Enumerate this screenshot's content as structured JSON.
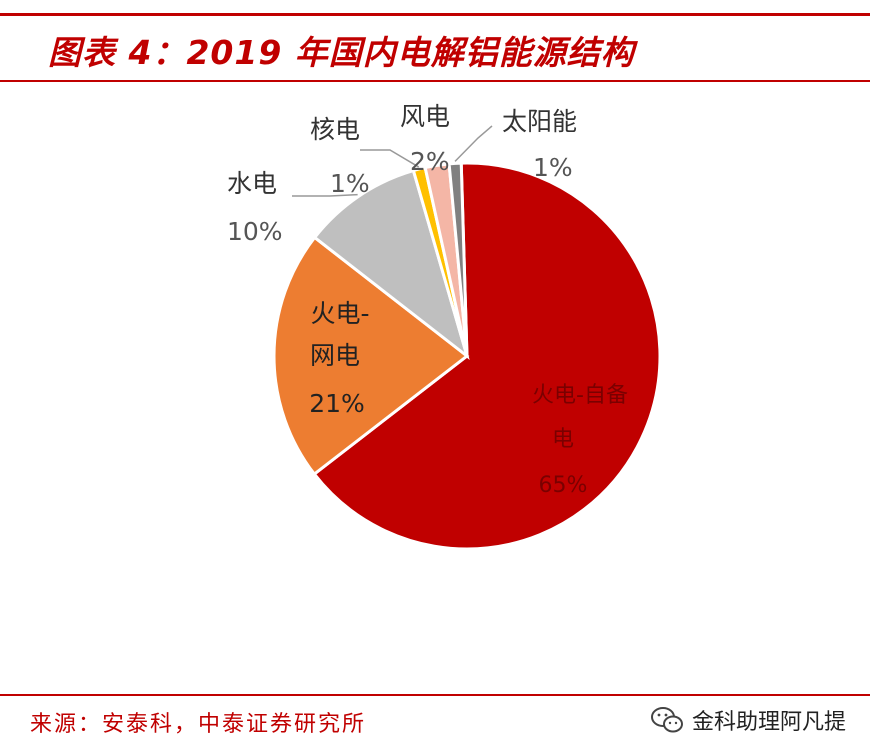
{
  "header": {
    "title": "图表 4：2019 年国内电解铝能源结构"
  },
  "footer": {
    "source": "来源：安泰科，中泰证券研究所",
    "watermark": "金科助理阿凡提",
    "watermark_icon": "wechat-icon"
  },
  "chart_data": {
    "type": "pie",
    "slices": [
      {
        "name": "火电-自备电",
        "name_line1": "火电-自备",
        "name_line2": "电",
        "value": 65,
        "label": "65%",
        "color": "#c00000"
      },
      {
        "name": "火电-网电",
        "name_line1": "火电-",
        "name_line2": "网电",
        "value": 21,
        "label": "21%",
        "color": "#ed7d31"
      },
      {
        "name": "水电",
        "value": 10,
        "label": "10%",
        "color": "#bfbfbf"
      },
      {
        "name": "核电",
        "value": 1,
        "label": "1%",
        "color": "#ffc000"
      },
      {
        "name": "风电",
        "value": 2,
        "label": "2%",
        "color": "#f4b6a6"
      },
      {
        "name": "太阳能",
        "value": 1,
        "label": "1%",
        "color": "#808080"
      }
    ]
  }
}
